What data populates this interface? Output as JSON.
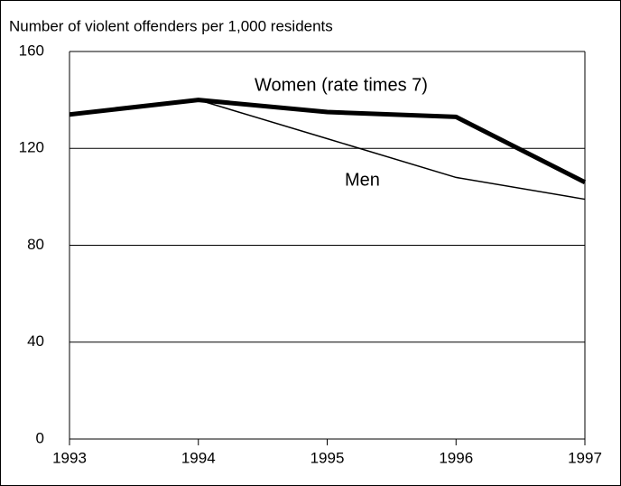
{
  "chart_data": {
    "type": "line",
    "title": "Number of violent offenders per 1,000 residents",
    "x": [
      1993,
      1994,
      1995,
      1996,
      1997
    ],
    "series": [
      {
        "name": "Women (rate times 7)",
        "color": "#000000",
        "values": [
          134,
          140,
          135,
          133,
          106
        ]
      },
      {
        "name": "Men",
        "color": "#000000",
        "values": [
          134,
          140,
          124,
          108,
          99
        ]
      }
    ],
    "xlim": [
      1993,
      1997
    ],
    "xticks": [
      1993,
      1994,
      1995,
      1996,
      1997
    ],
    "ylim": [
      0,
      160
    ],
    "yticks": [
      0,
      40,
      80,
      120,
      160
    ],
    "grid": true
  }
}
